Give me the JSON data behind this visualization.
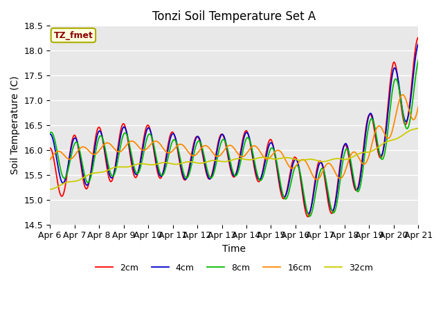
{
  "title": "Tonzi Soil Temperature Set A",
  "xlabel": "Time",
  "ylabel": "Soil Temperature (C)",
  "ylim": [
    14.5,
    18.5
  ],
  "annotation": "TZ_fmet",
  "legend_labels": [
    "2cm",
    "4cm",
    "8cm",
    "16cm",
    "32cm"
  ],
  "legend_colors": [
    "#ff0000",
    "#0000cd",
    "#00bb00",
    "#ff8800",
    "#cccc00"
  ],
  "x_tick_labels": [
    "Apr 6",
    "Apr 7",
    "Apr 8",
    "Apr 9",
    "Apr 10",
    "Apr 11",
    "Apr 12",
    "Apr 13",
    "Apr 14",
    "Apr 15",
    "Apr 16",
    "Apr 17",
    "Apr 18",
    "Apr 19",
    "Apr 20",
    "Apr 21"
  ]
}
